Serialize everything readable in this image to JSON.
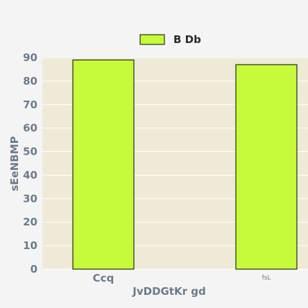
{
  "chart_data": {
    "type": "bar",
    "categories": [
      "Ccq",
      "fsL"
    ],
    "series": [
      {
        "name": "B Db",
        "values": [
          89,
          87
        ]
      }
    ],
    "xlabel": "JvDDGtKr gd",
    "ylabel": "sEeNBMP",
    "ylim": [
      0,
      90
    ],
    "yticks": [
      0,
      10,
      20,
      30,
      40,
      50,
      60,
      70,
      80,
      90
    ],
    "grid": true,
    "legend_position": "top-center",
    "colors": {
      "bar": "#c5fb3a",
      "bar_stroke": "#000000",
      "plot_bg": "#efe9d8",
      "grid": "#ffffff"
    }
  }
}
